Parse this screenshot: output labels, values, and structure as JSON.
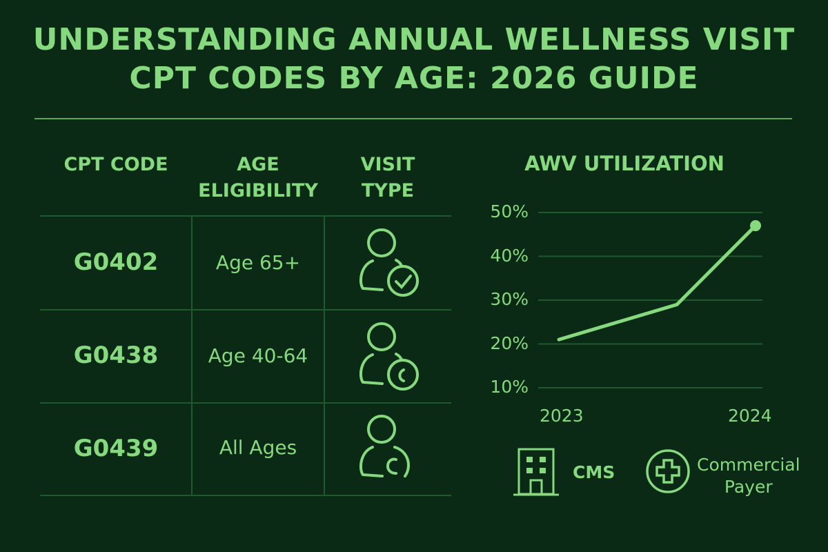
{
  "title": {
    "line1": "UNDERSTANDING ANNUAL WELLNESS VISIT",
    "line2": "CPT CODES BY AGE: 2026 GUIDE"
  },
  "table": {
    "headers": [
      {
        "line1": "CPT CODE",
        "line2": ""
      },
      {
        "line1": "AGE",
        "line2": "ELIGIBILITY"
      },
      {
        "line1": "VISIT",
        "line2": "TYPE"
      }
    ],
    "rows": [
      {
        "code": "G0402",
        "age": "Age 65+",
        "icon": "user-check-icon"
      },
      {
        "code": "G0438",
        "age": "Age 40-64",
        "icon": "user-clock-icon"
      },
      {
        "code": "G0439",
        "age": "All Ages",
        "icon": "user-c-icon"
      }
    ]
  },
  "colors": {
    "background": "#0a2a16",
    "accent": "#86d97e",
    "grid": "#1f5a2c"
  },
  "chart_data": {
    "type": "line",
    "title": "AWV UTILIZATION",
    "x_tick_labels": [
      "2023",
      "2024"
    ],
    "y_tick_labels": [
      "50%",
      "40%",
      "30%",
      "20%",
      "10%"
    ],
    "ylim": [
      10,
      50
    ],
    "grid": true,
    "series": [
      {
        "points": [
          {
            "x": 2023,
            "y": 21
          },
          {
            "x": 2023.6,
            "y": 29
          },
          {
            "x": 2024,
            "y": 47
          }
        ]
      }
    ]
  },
  "legend": [
    {
      "label": "CMS",
      "icon": "building-icon"
    },
    {
      "label_line1": "Commercial",
      "label_line2": "Payer",
      "icon": "medical-cross-icon"
    }
  ]
}
